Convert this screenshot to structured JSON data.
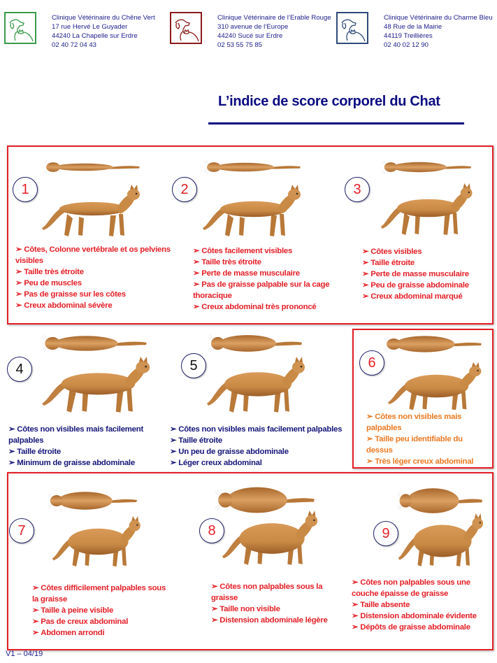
{
  "clinics": [
    {
      "name": "Clinique Vétérinaire du Chêne Vert",
      "street": "17 rue Hervé Le Guyader",
      "city": "44240 La Chapelle sur Erdre",
      "phone": "02 40 72 04 43",
      "color": "#3a9a4a"
    },
    {
      "name": "Clinique Vétérinaire de l’Erable Rouge",
      "street": "310 avenue de l’Europe",
      "city": "44240 Sucé sur Erdre",
      "phone": "02 53 55 75 85",
      "color": "#8b1a1a"
    },
    {
      "name": "Clinique Vétérinaire du Charme Bleu",
      "street": "48 Rue de la Mairie",
      "city": "44119 Treillières",
      "phone": "02 40 02 12 90",
      "color": "#2f4a7a"
    }
  ],
  "title": "L’indice de score corporel du Chat",
  "scores": [
    {
      "number": "1",
      "items": [
        "Côtes, Colonne vertébrale et os pelviens visibles",
        "Taille très étroite",
        "Peu de muscles",
        "Pas de graisse sur les côtes",
        "Creux abdominal sévère"
      ]
    },
    {
      "number": "2",
      "items": [
        "Côtes facilement visibles",
        "Taille très étroite",
        "Perte de masse musculaire",
        "Pas de graisse palpable sur la cage thoracique",
        "Creux abdominal très prononcé"
      ]
    },
    {
      "number": "3",
      "items": [
        "Côtes visibles",
        "Taille étroite",
        "Perte de masse musculaire",
        "Peu de graisse abdominale",
        "Creux abdominal marqué"
      ]
    },
    {
      "number": "4",
      "items": [
        "Côtes non visibles mais facilement palpables",
        "Taille étroite",
        "Minimum  de graisse abdominale"
      ]
    },
    {
      "number": "5",
      "items": [
        "Côtes non visibles mais facilement palpables",
        "Taille étroite",
        "Un peu de graisse abdominale",
        "Léger creux abdominal"
      ]
    },
    {
      "number": "6",
      "items": [
        "Côtes non visibles mais palpables",
        "Taille peu identifiable du dessus",
        "Très léger creux abdominal"
      ]
    },
    {
      "number": "7",
      "items": [
        "Côtes difficilement palpables sous la graisse",
        "Taille à peine visible",
        "Pas de  creux abdominal",
        "Abdomen arrondi"
      ]
    },
    {
      "number": "8",
      "items": [
        "Côtes non palpables sous la graisse",
        "Taille non visible",
        "Distension abdominale légère"
      ]
    },
    {
      "number": "9",
      "items": [
        "Côtes non palpables sous une couche épaisse de graisse",
        "Taille  absente",
        "Distension abdominale évidente",
        "Dépôts de graisse abdominale"
      ]
    }
  ],
  "colors": {
    "thin": "#e41f26",
    "ideal": "#16167a",
    "overweight": "#ec7a23",
    "obese": "#e41f26",
    "box": "#e41f26"
  },
  "footer": "V1 – 04/19"
}
